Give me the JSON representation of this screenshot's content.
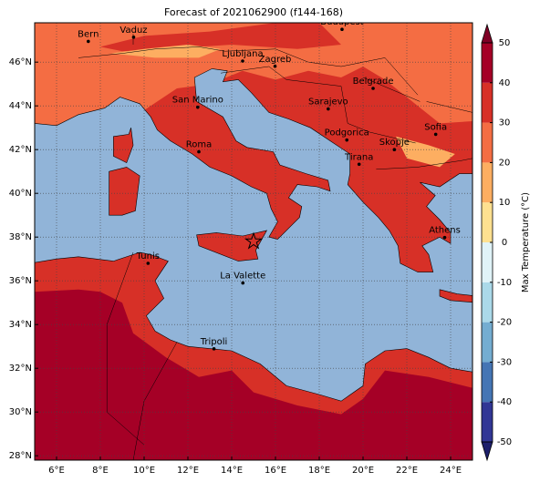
{
  "title": "Forecast of 2021062900 (f144-168)",
  "map": {
    "xlim": [
      5,
      25
    ],
    "ylim": [
      27.8,
      47.8
    ],
    "xticks": [
      {
        "value": 6,
        "label": "6°E"
      },
      {
        "value": 8,
        "label": "8°E"
      },
      {
        "value": 10,
        "label": "10°E"
      },
      {
        "value": 12,
        "label": "12°E"
      },
      {
        "value": 14,
        "label": "14°E"
      },
      {
        "value": 16,
        "label": "16°E"
      },
      {
        "value": 18,
        "label": "18°E"
      },
      {
        "value": 20,
        "label": "20°E"
      },
      {
        "value": 22,
        "label": "22°E"
      },
      {
        "value": 24,
        "label": "24°E"
      }
    ],
    "yticks": [
      {
        "value": 28,
        "label": "28°N"
      },
      {
        "value": 30,
        "label": "30°N"
      },
      {
        "value": 32,
        "label": "32°N"
      },
      {
        "value": 34,
        "label": "34°N"
      },
      {
        "value": 36,
        "label": "36°N"
      },
      {
        "value": 38,
        "label": "38°N"
      },
      {
        "value": 40,
        "label": "40°N"
      },
      {
        "value": 42,
        "label": "42°N"
      },
      {
        "value": 44,
        "label": "44°N"
      },
      {
        "value": 46,
        "label": "46°N"
      }
    ],
    "grid": true,
    "cities": [
      "Bern",
      "Vaduz",
      "Budapest",
      "Ljubljana",
      "Zagreb",
      "Belgrade",
      "San Marino",
      "Sarajevo",
      "Sofia",
      "Podgorica",
      "Skopje",
      "Roma",
      "Tirana",
      "Athens",
      "Tunis",
      "La Valette",
      "Tripoli"
    ]
  },
  "colorbar": {
    "label": "Max Temperature (°C)",
    "lim": [
      -50,
      50
    ],
    "ticks": [
      -50,
      -40,
      -30,
      -20,
      -10,
      0,
      10,
      20,
      30,
      40,
      50
    ],
    "colors": [
      "#313695",
      "#4575b4",
      "#74add1",
      "#abd9e9",
      "#e0f3f8",
      "#fee090",
      "#fdae61",
      "#f46d43",
      "#d73027",
      "#a50026"
    ]
  }
}
